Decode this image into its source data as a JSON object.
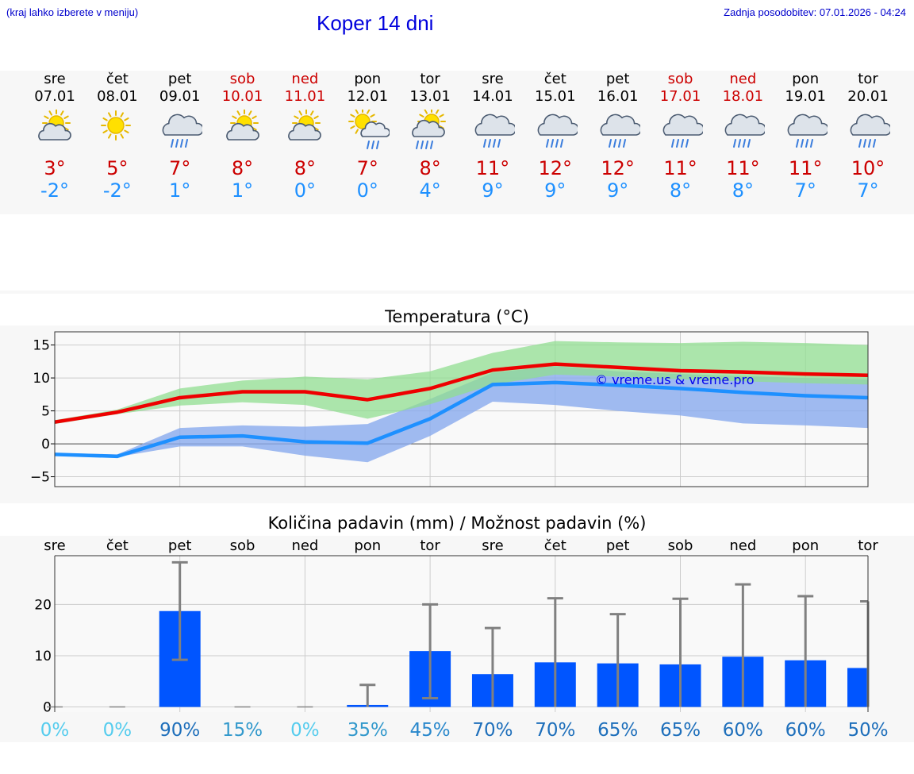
{
  "header": {
    "hint": "(kraj lahko izberete v meniju)",
    "title": "Koper 14 dni",
    "updated": "Zadnja posodobitev: 07.01.2026 - 04:24"
  },
  "days": [
    {
      "name": "sre",
      "date": "07.01",
      "weekend": false,
      "icon": "partly-cloudy-icon",
      "max": "3°",
      "min": "-2°"
    },
    {
      "name": "čet",
      "date": "08.01",
      "weekend": false,
      "icon": "sunny-icon",
      "max": "5°",
      "min": "-2°"
    },
    {
      "name": "pet",
      "date": "09.01",
      "weekend": false,
      "icon": "rain-cloud-icon",
      "max": "7°",
      "min": "1°"
    },
    {
      "name": "sob",
      "date": "10.01",
      "weekend": true,
      "icon": "partly-cloudy-icon",
      "max": "8°",
      "min": "1°"
    },
    {
      "name": "ned",
      "date": "11.01",
      "weekend": true,
      "icon": "partly-cloudy-icon",
      "max": "8°",
      "min": "0°"
    },
    {
      "name": "pon",
      "date": "12.01",
      "weekend": false,
      "icon": "sun-rain-icon",
      "max": "7°",
      "min": "0°"
    },
    {
      "name": "tor",
      "date": "13.01",
      "weekend": false,
      "icon": "sun-cloud-rain-icon",
      "max": "8°",
      "min": "4°"
    },
    {
      "name": "sre",
      "date": "14.01",
      "weekend": false,
      "icon": "rain-cloud-icon",
      "max": "11°",
      "min": "9°"
    },
    {
      "name": "čet",
      "date": "15.01",
      "weekend": false,
      "icon": "rain-cloud-icon",
      "max": "12°",
      "min": "9°"
    },
    {
      "name": "pet",
      "date": "16.01",
      "weekend": false,
      "icon": "rain-cloud-icon",
      "max": "12°",
      "min": "9°"
    },
    {
      "name": "sob",
      "date": "17.01",
      "weekend": true,
      "icon": "rain-cloud-icon",
      "max": "11°",
      "min": "8°"
    },
    {
      "name": "ned",
      "date": "18.01",
      "weekend": true,
      "icon": "rain-cloud-icon",
      "max": "11°",
      "min": "8°"
    },
    {
      "name": "pon",
      "date": "19.01",
      "weekend": false,
      "icon": "rain-cloud-icon",
      "max": "11°",
      "min": "7°"
    },
    {
      "name": "tor",
      "date": "20.01",
      "weekend": false,
      "icon": "rain-cloud-icon",
      "max": "10°",
      "min": "7°"
    }
  ],
  "colors": {
    "max_text": "#cc0000",
    "min_text": "#1e90ff",
    "max_line": "#ee0000",
    "min_line": "#1e90ff",
    "max_band": "#90dd90",
    "min_band": "#88aaee",
    "bar": "#0055ff",
    "whisker": "#808080"
  },
  "chart_data": [
    {
      "type": "line",
      "title": "Temperatura (°C)",
      "watermark": "© vreme.us & vreme.pro",
      "ylim": [
        -6.5,
        17
      ],
      "yticks": [
        -5,
        0,
        5,
        10,
        15
      ],
      "ytick_labels": [
        "−5",
        "0",
        "5",
        "10",
        "15"
      ],
      "x": [
        0,
        1,
        2,
        3,
        4,
        5,
        6,
        7,
        8,
        9,
        10,
        11,
        12,
        13
      ],
      "series": [
        {
          "name": "max",
          "values": [
            3.3,
            4.8,
            7.0,
            7.9,
            7.9,
            6.7,
            8.4,
            11.2,
            12.1,
            11.6,
            11.1,
            10.9,
            10.6,
            10.4
          ],
          "band_low": [
            3.0,
            4.5,
            5.8,
            6.3,
            5.9,
            3.8,
            6.0,
            9.0,
            10.5,
            10.2,
            9.8,
            9.5,
            9.2,
            9.0
          ],
          "band_high": [
            3.6,
            5.2,
            8.4,
            9.6,
            10.2,
            9.8,
            11.0,
            13.8,
            15.6,
            15.4,
            15.3,
            15.5,
            15.3,
            15.0
          ]
        },
        {
          "name": "min",
          "values": [
            -1.6,
            -1.9,
            1.0,
            1.2,
            0.3,
            0.1,
            3.8,
            9.0,
            9.3,
            8.9,
            8.4,
            7.8,
            7.3,
            7.0
          ],
          "band_low": [
            -1.8,
            -2.0,
            -0.4,
            -0.4,
            -1.8,
            -2.8,
            1.2,
            6.4,
            5.9,
            5.0,
            4.3,
            3.1,
            2.8,
            2.4
          ],
          "band_high": [
            -1.4,
            -1.6,
            2.4,
            2.8,
            2.6,
            3.0,
            6.8,
            10.8,
            11.8,
            11.0,
            10.6,
            10.3,
            10.0,
            9.8
          ]
        }
      ]
    },
    {
      "type": "bar",
      "title": "Količina padavin (mm) / Možnost padavin (%)",
      "categories": [
        "sre",
        "čet",
        "pet",
        "sob",
        "ned",
        "pon",
        "tor",
        "sre",
        "čet",
        "pet",
        "sob",
        "ned",
        "pon",
        "tor"
      ],
      "ylim": [
        -1,
        29.5
      ],
      "yticks": [
        0,
        10,
        20
      ],
      "ytick_labels": [
        "0",
        "10",
        "20"
      ],
      "values": [
        0,
        0,
        18.7,
        0,
        0,
        0.4,
        10.9,
        6.4,
        8.7,
        8.5,
        8.3,
        9.8,
        9.1,
        7.6
      ],
      "err_low": [
        0,
        0,
        9.2,
        0,
        0,
        0,
        1.7,
        0,
        0,
        0,
        0,
        0,
        0,
        0
      ],
      "err_high": [
        0,
        0,
        28.2,
        0,
        0,
        4.3,
        20.0,
        15.4,
        21.2,
        18.1,
        21.1,
        23.9,
        21.6,
        20.6
      ],
      "chance": [
        "0%",
        "0%",
        "90%",
        "15%",
        "0%",
        "35%",
        "45%",
        "70%",
        "70%",
        "65%",
        "65%",
        "60%",
        "60%",
        "50%"
      ],
      "chance_colors": [
        "#55ccee",
        "#55ccee",
        "#1e6fbb",
        "#3399cc",
        "#55ccee",
        "#3399cc",
        "#2a88cc",
        "#1e6fbb",
        "#1e6fbb",
        "#1e6fbb",
        "#1e6fbb",
        "#1e6fbb",
        "#1e6fbb",
        "#1e6fbb"
      ]
    }
  ]
}
